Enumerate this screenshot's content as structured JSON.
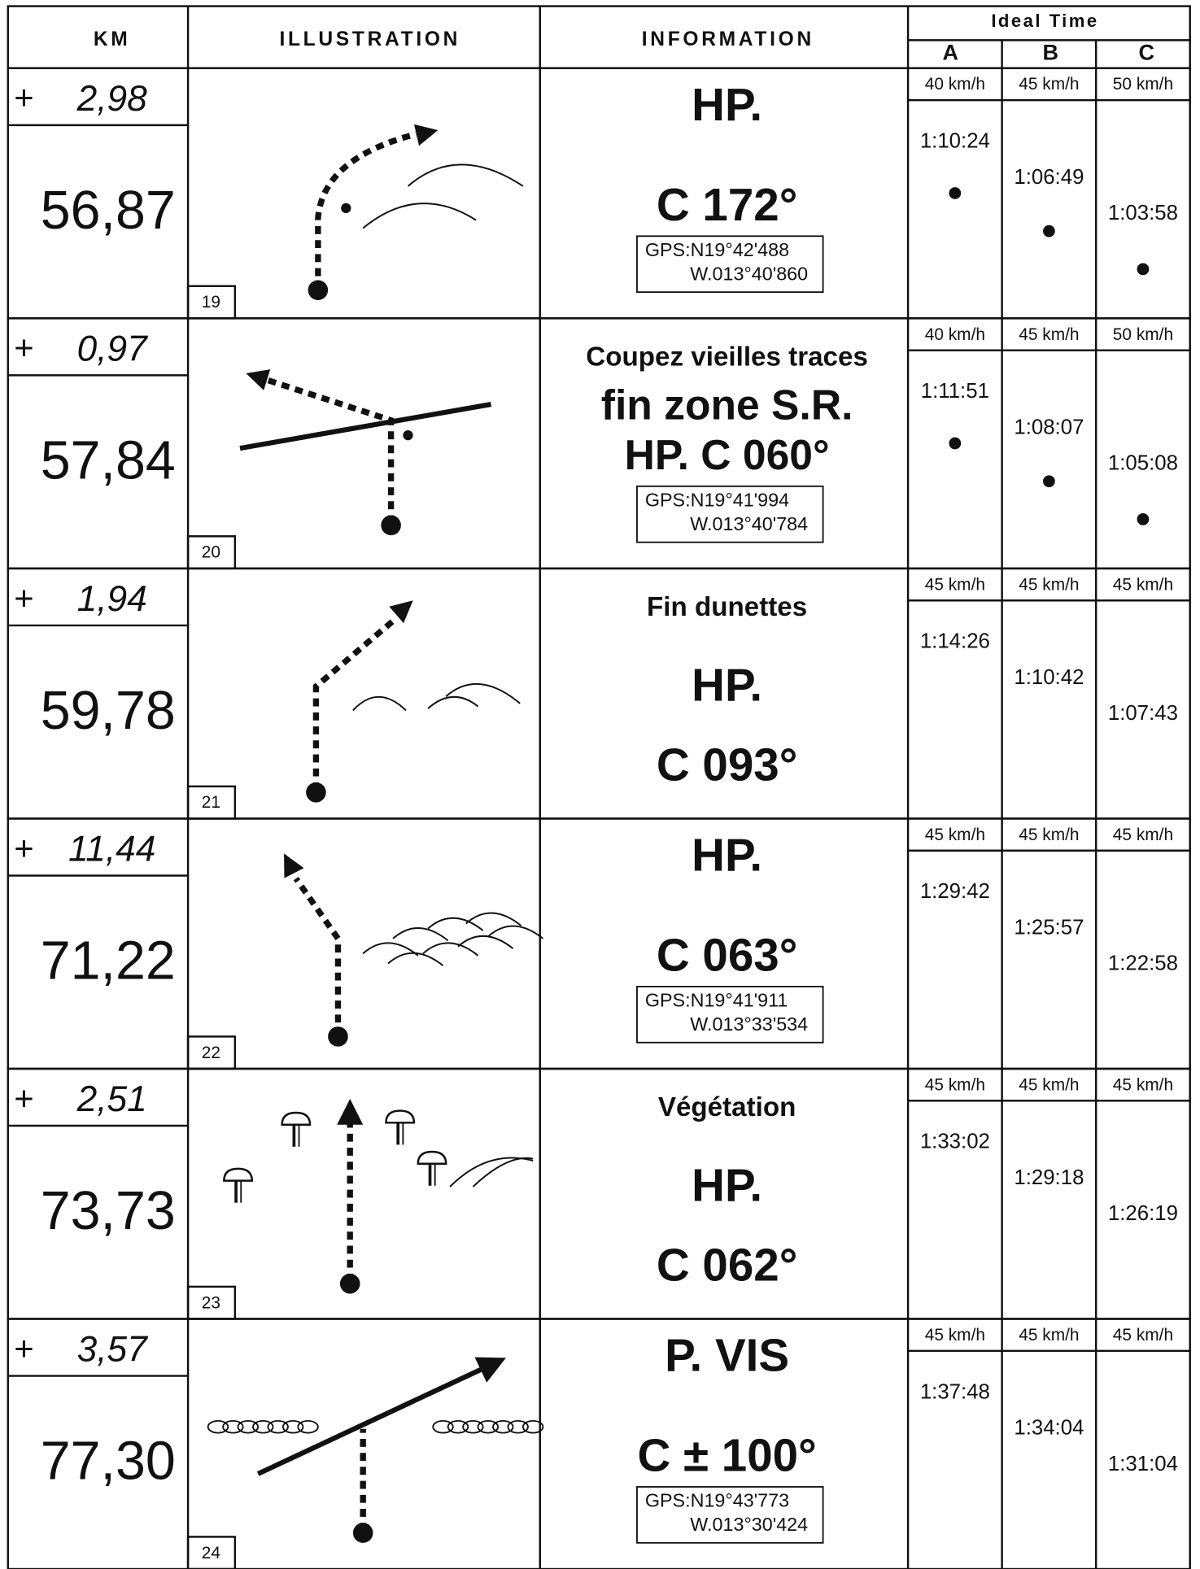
{
  "header": {
    "km": "KM",
    "illustration": "ILLUSTRATION",
    "information": "INFORMATION",
    "ideal_time": "Ideal Time",
    "columns": [
      "A",
      "B",
      "C"
    ]
  },
  "rows": [
    {
      "sign": "+",
      "partial": "2,98",
      "total": "56,87",
      "number": "19",
      "info": [
        "HP.",
        "C 172°"
      ],
      "gps": [
        "GPS:N19°42'488",
        "W.013°40'860"
      ],
      "speeds": [
        "40 km/h",
        "45 km/h",
        "50 km/h"
      ],
      "times": [
        "1:10:24",
        "1:06:49",
        "1:03:58"
      ]
    },
    {
      "sign": "+",
      "partial": "0,97",
      "total": "57,84",
      "number": "20",
      "info": [
        "Coupez vieilles traces",
        "fin zone S.R.",
        "HP. C 060°"
      ],
      "gps": [
        "GPS:N19°41'994",
        "W.013°40'784"
      ],
      "speeds": [
        "40 km/h",
        "45 km/h",
        "50 km/h"
      ],
      "times": [
        "1:11:51",
        "1:08:07",
        "1:05:08"
      ]
    },
    {
      "sign": "+",
      "partial": "1,94",
      "total": "59,78",
      "number": "21",
      "info": [
        "Fin dunettes",
        "HP.",
        "C 093°"
      ],
      "gps": [],
      "speeds": [
        "45 km/h",
        "45 km/h",
        "45 km/h"
      ],
      "times": [
        "1:14:26",
        "1:10:42",
        "1:07:43"
      ]
    },
    {
      "sign": "+",
      "partial": "11,44",
      "total": "71,22",
      "number": "22",
      "info": [
        "HP.",
        "C 063°"
      ],
      "gps": [
        "GPS:N19°41'911",
        "W.013°33'534"
      ],
      "speeds": [
        "45 km/h",
        "45 km/h",
        "45 km/h"
      ],
      "times": [
        "1:29:42",
        "1:25:57",
        "1:22:58"
      ]
    },
    {
      "sign": "+",
      "partial": "2,51",
      "total": "73,73",
      "number": "23",
      "info": [
        "Végétation",
        "HP.",
        "C 062°"
      ],
      "gps": [],
      "speeds": [
        "45 km/h",
        "45 km/h",
        "45 km/h"
      ],
      "times": [
        "1:33:02",
        "1:29:18",
        "1:26:19"
      ]
    },
    {
      "sign": "+",
      "partial": "3,57",
      "total": "77,30",
      "number": "24",
      "info": [
        "P. VIS",
        "C ± 100°"
      ],
      "gps": [
        "GPS:N19°43'773",
        "W.013°30'424"
      ],
      "speeds": [
        "45 km/h",
        "45 km/h",
        "45 km/h"
      ],
      "times": [
        "1:37:48",
        "1:34:04",
        "1:31:04"
      ]
    }
  ]
}
